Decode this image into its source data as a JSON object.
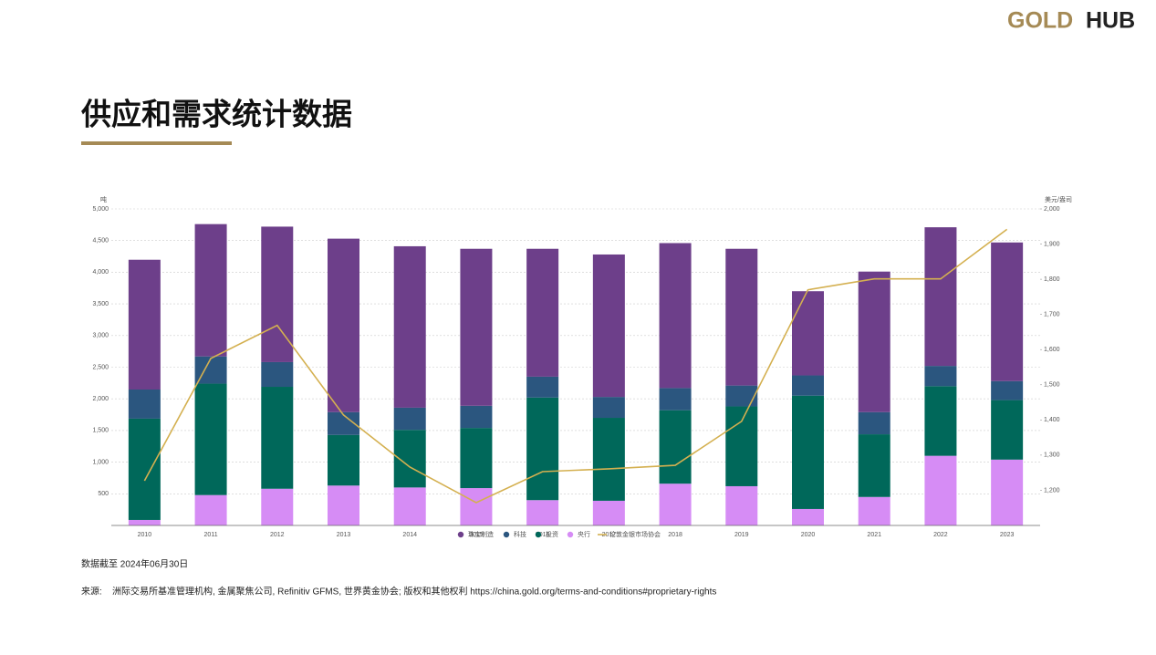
{
  "logo": {
    "gold": "GOLD",
    "hub": "HUB"
  },
  "title": "供应和需求统计数据",
  "footer": {
    "date": "数据截至 2024年06月30日",
    "source_label": "来源:",
    "source": "洲际交易所基准管理机构, 金属聚焦公司, Refinitiv GFMS, 世界黄金协会; 版权和其他权利 https://china.gold.org/terms-and-conditions#proprietary-rights"
  },
  "chart_data": {
    "type": "stacked-bar-line",
    "y_label": "吨",
    "y2_label": "美元/盎司",
    "categories": [
      "2010",
      "2011",
      "2012",
      "2013",
      "2014",
      "2015",
      "2016",
      "2017",
      "2018",
      "2019",
      "2020",
      "2021",
      "2022",
      "2023"
    ],
    "series": [
      {
        "name": "央行",
        "color": "#d68cf5",
        "values": [
          87,
          480,
          580,
          630,
          600,
          590,
          400,
          390,
          660,
          620,
          260,
          450,
          1100,
          1040
        ]
      },
      {
        "name": "投资",
        "color": "#00685a",
        "values": [
          1600,
          1760,
          1610,
          800,
          910,
          950,
          1620,
          1310,
          1160,
          1260,
          1790,
          990,
          1100,
          940
        ]
      },
      {
        "name": "科技",
        "color": "#2b567f",
        "values": [
          460,
          430,
          390,
          360,
          350,
          350,
          330,
          330,
          350,
          330,
          320,
          350,
          320,
          300
        ]
      },
      {
        "name": "珠宝制造",
        "color": "#6d3f8a",
        "values": [
          2050,
          2090,
          2140,
          2740,
          2550,
          2480,
          2020,
          2250,
          2290,
          2160,
          1330,
          2220,
          2190,
          2190
        ]
      },
      {
        "name": "伦敦金银市场协会",
        "color": "#d4b050",
        "axis": "y2",
        "values": [
          1227,
          1575,
          1669,
          1414,
          1266,
          1165,
          1253,
          1261,
          1271,
          1396,
          1770,
          1801,
          1801,
          1942
        ]
      }
    ],
    "ylim": [
      0,
      5000
    ],
    "yticks": [
      {
        "value": 500,
        "label": "500"
      },
      {
        "value": 1000,
        "label": "1,000"
      },
      {
        "value": 1500,
        "label": "1,500"
      },
      {
        "value": 2000,
        "label": "2,000"
      },
      {
        "value": 2500,
        "label": "2,500"
      },
      {
        "value": 3000,
        "label": "3,000"
      },
      {
        "value": 3500,
        "label": "3,500"
      },
      {
        "value": 4000,
        "label": "4,000"
      },
      {
        "value": 4500,
        "label": "4,500"
      },
      {
        "value": 5000,
        "label": "5,000"
      }
    ],
    "y2lim": [
      1100,
      2000
    ],
    "y2ticks": [
      {
        "value": 1200,
        "label": "1,200"
      },
      {
        "value": 1300,
        "label": "1,300"
      },
      {
        "value": 1400,
        "label": "1,400"
      },
      {
        "value": 1500,
        "label": "1,500"
      },
      {
        "value": 1600,
        "label": "1,600"
      },
      {
        "value": 1700,
        "label": "1,700"
      },
      {
        "value": 1800,
        "label": "1,800"
      },
      {
        "value": 1900,
        "label": "1,900"
      },
      {
        "value": 2000,
        "label": "2,000"
      }
    ],
    "grid": true
  }
}
